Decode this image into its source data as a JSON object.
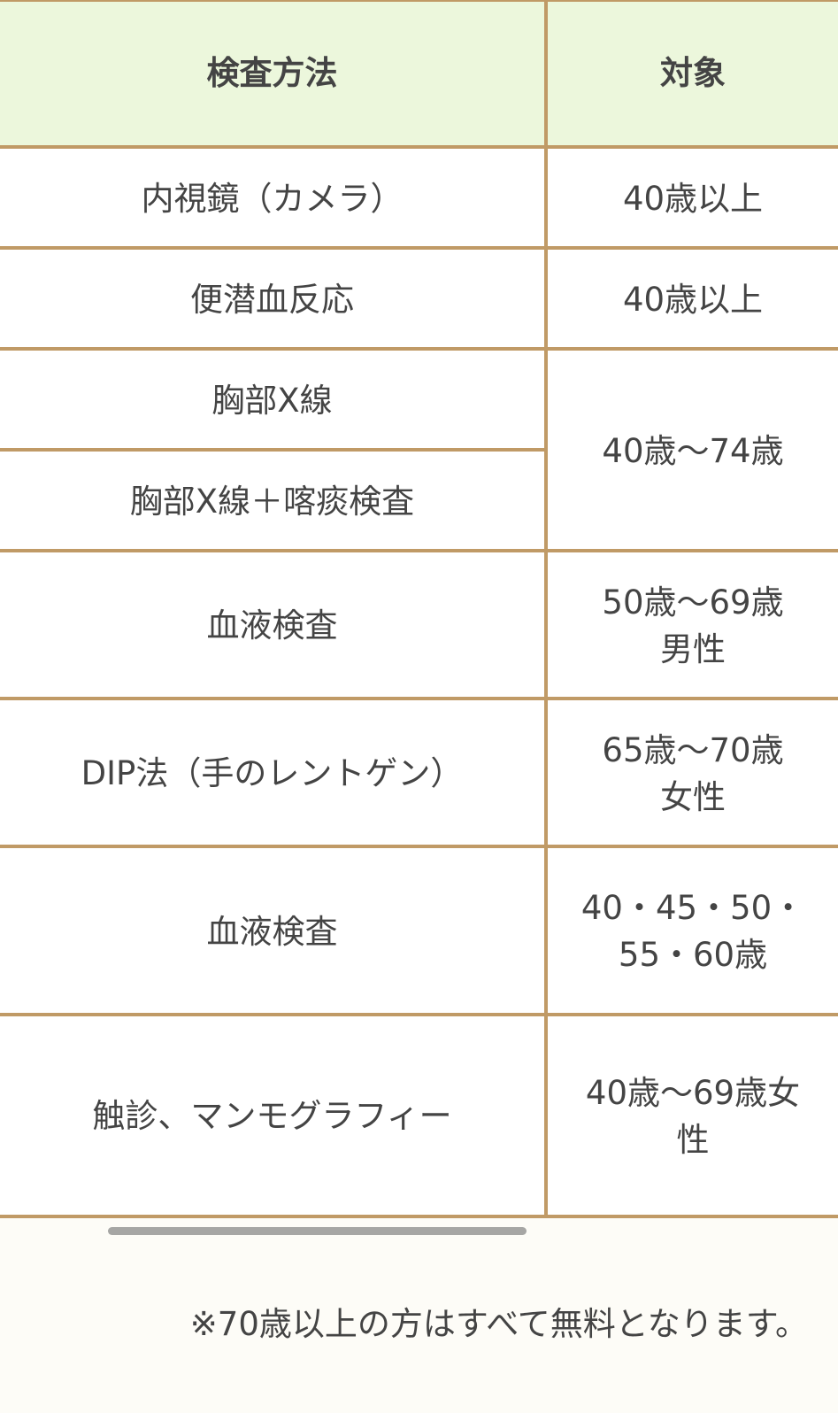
{
  "table": {
    "headers": [
      "検査方法",
      "対象"
    ],
    "rows": [
      {
        "method": "内視鏡（カメラ）",
        "target": "40歳以上"
      },
      {
        "method": "便潜血反応",
        "target": "40歳以上"
      },
      {
        "method": "胸部X線",
        "target": "40歳〜74歳"
      },
      {
        "method": "胸部X線＋喀痰検査",
        "target": ""
      },
      {
        "method": "血液検査",
        "target_lines": [
          "50歳〜69歳",
          "男性"
        ]
      },
      {
        "method": "DIP法（手のレントゲン）",
        "target_lines": [
          "65歳〜70歳",
          "女性"
        ]
      },
      {
        "method": "血液検査",
        "target_lines": [
          "40・45・50・",
          "55・60歳"
        ]
      },
      {
        "method": "触診、マンモグラフィー",
        "target_lines": [
          "40歳〜69歳女",
          "性"
        ]
      }
    ]
  },
  "footnote": "※70歳以上の方はすべて無料となります。",
  "colors": {
    "border": "#c09a66",
    "header_bg": "#ecf7dc",
    "text": "#444444",
    "scrollbar": "#a6a6a4"
  }
}
